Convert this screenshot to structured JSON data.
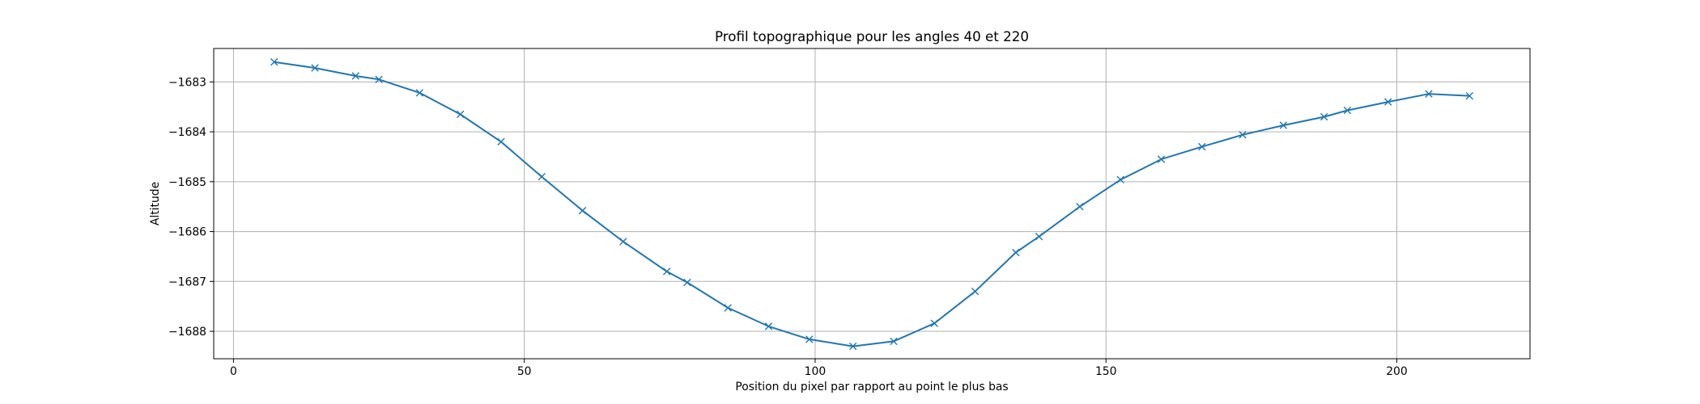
{
  "chart_data": {
    "type": "line",
    "title": "Profil topographique pour les angles 40 et 220",
    "xlabel": "Position du pixel par rapport au point le plus bas",
    "ylabel": "Altitude",
    "xlim": [
      -3.4,
      222.9
    ],
    "ylim": [
      -1688.55,
      -1682.33
    ],
    "xticks": [
      0,
      50,
      100,
      150,
      200
    ],
    "yticks": [
      -1688,
      -1687,
      -1686,
      -1685,
      -1684,
      -1683
    ],
    "grid": true,
    "series": [
      {
        "color": "#1f77b4",
        "marker": "x",
        "x": [
          7,
          14,
          21,
          25,
          32,
          39,
          46,
          53,
          60,
          67,
          74.5,
          78,
          85,
          92,
          99,
          106.5,
          113.5,
          120.5,
          127.5,
          134.5,
          138.5,
          145.5,
          152.5,
          159.5,
          166.5,
          173.5,
          180.5,
          187.5,
          191.5,
          198.5,
          205.5,
          212.5
        ],
        "y": [
          -1682.6,
          -1682.72,
          -1682.88,
          -1682.95,
          -1683.22,
          -1683.65,
          -1684.2,
          -1684.9,
          -1685.58,
          -1686.2,
          -1686.8,
          -1687.02,
          -1687.53,
          -1687.9,
          -1688.16,
          -1688.3,
          -1688.2,
          -1687.84,
          -1687.2,
          -1686.42,
          -1686.1,
          -1685.5,
          -1684.96,
          -1684.55,
          -1684.3,
          -1684.06,
          -1683.87,
          -1683.7,
          -1683.57,
          -1683.4,
          -1683.24,
          -1683.28
        ]
      }
    ]
  }
}
